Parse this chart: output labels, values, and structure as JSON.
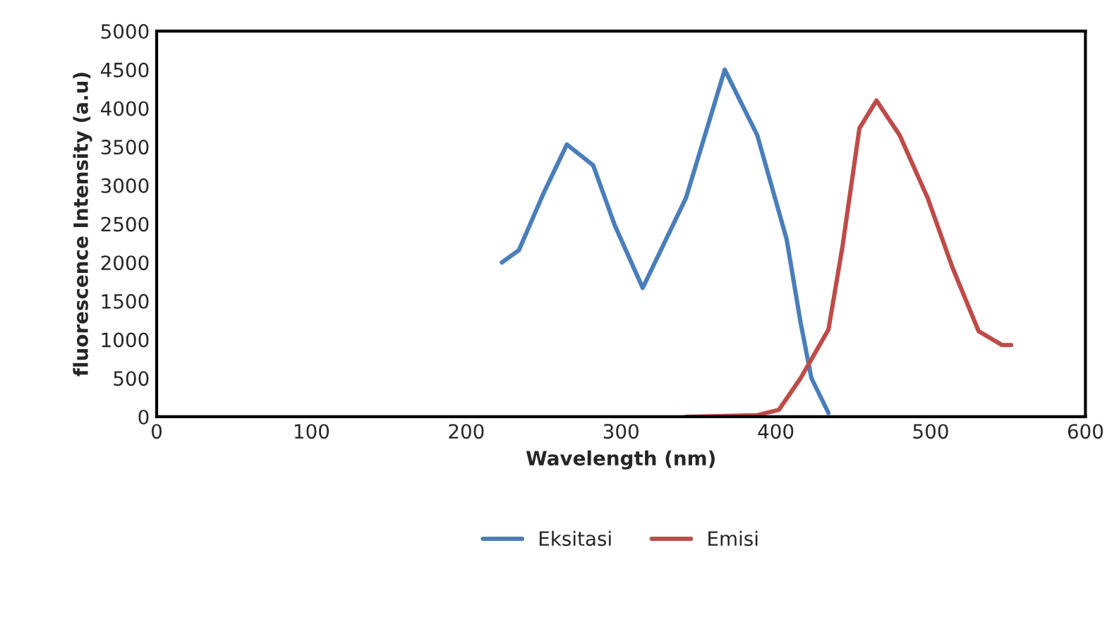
{
  "chart_data": {
    "type": "line",
    "xlabel": "Wavelength (nm)",
    "ylabel": "fluorescence Intensity (a.u)",
    "xlim": [
      0,
      600
    ],
    "xticks": [
      0,
      100,
      200,
      300,
      400,
      500,
      600
    ],
    "ylim": [
      0,
      5000
    ],
    "yticks": [
      0,
      500,
      1000,
      1500,
      2000,
      2500,
      3000,
      3500,
      4000,
      4500,
      5000
    ],
    "grid": false,
    "legend": "bottom",
    "marker": "none",
    "line_style": "solid",
    "series": [
      {
        "name": "Eksitasi",
        "color": "#4a7ebb",
        "x": [
          223,
          234,
          250,
          265,
          282,
          296,
          314,
          342,
          367,
          388,
          407,
          416,
          423,
          434
        ],
        "values": [
          2000,
          2160,
          2900,
          3530,
          3260,
          2480,
          1670,
          2840,
          4500,
          3650,
          2300,
          1220,
          500,
          50
        ]
      },
      {
        "name": "Emisi",
        "color": "#be4b48",
        "x": [
          342,
          388,
          402,
          416,
          434,
          443,
          454,
          465,
          480,
          498,
          514,
          531,
          546,
          552
        ],
        "values": [
          0,
          20,
          90,
          500,
          1130,
          2200,
          3740,
          4100,
          3650,
          2840,
          1940,
          1110,
          930,
          930
        ]
      }
    ]
  }
}
